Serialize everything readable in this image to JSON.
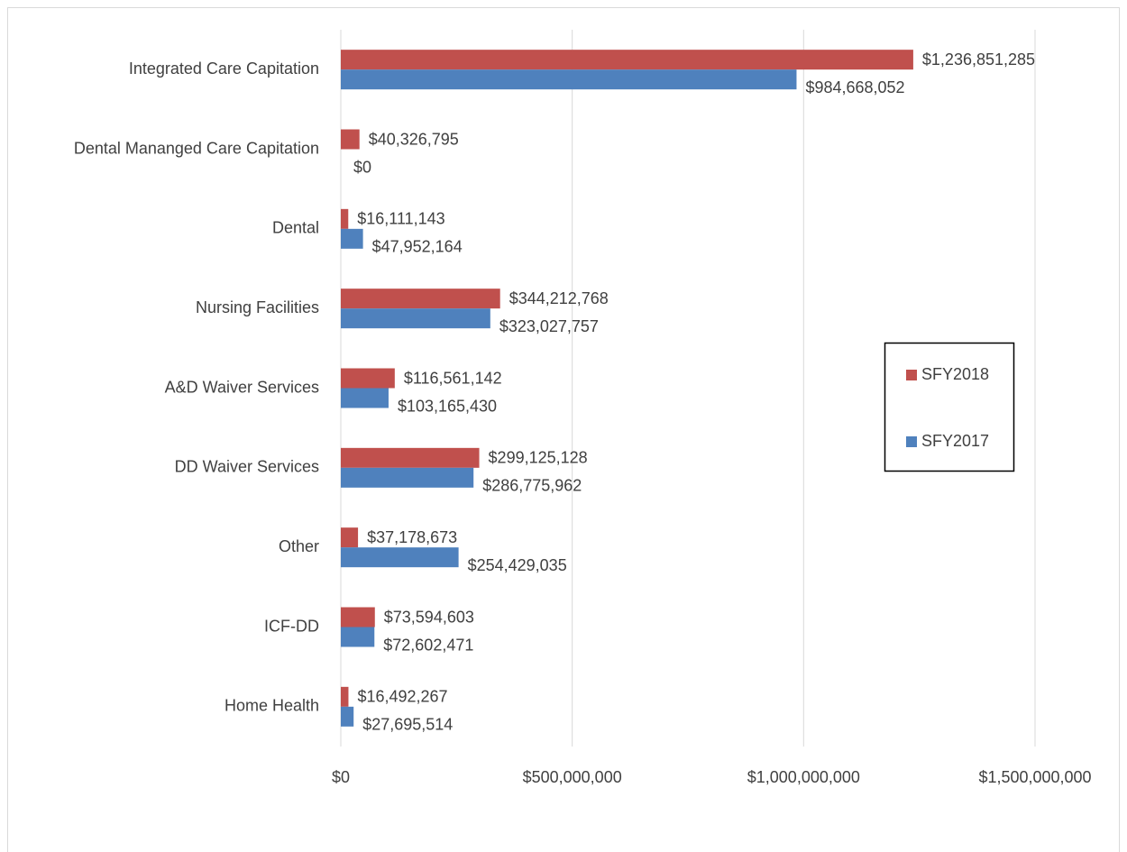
{
  "chart_data": {
    "type": "hbar",
    "categories": [
      "Integrated Care Capitation",
      "Dental Mananged Care Capitation",
      "Dental",
      "Nursing Facilities",
      "A&D Waiver Services",
      "DD Waiver Services",
      "Other",
      "ICF-DD",
      "Home Health"
    ],
    "series": [
      {
        "name": "SFY2018",
        "color": "#c0504d",
        "values": [
          1236851285,
          40326795,
          16111143,
          344212768,
          116561142,
          299125128,
          37178673,
          73594603,
          16492267
        ],
        "value_labels": [
          "$1,236,851,285",
          "$40,326,795",
          "$16,111,143",
          "$344,212,768",
          "$116,561,142",
          "$299,125,128",
          "$37,178,673",
          "$73,594,603",
          "$16,492,267"
        ]
      },
      {
        "name": "SFY2017",
        "color": "#4f81bd",
        "values": [
          984668052,
          0,
          47952164,
          323027757,
          103165430,
          286775962,
          254429035,
          72602471,
          27695514
        ],
        "value_labels": [
          "$984,668,052",
          "$0",
          "$47,952,164",
          "$323,027,757",
          "$103,165,430",
          "$286,775,962",
          "$254,429,035",
          "$72,602,471",
          "$27,695,514"
        ]
      }
    ],
    "xlim": [
      0,
      1500000000
    ],
    "xticks": [
      {
        "value": 0,
        "label": "$0"
      },
      {
        "value": 500000000,
        "label": "$500,000,000"
      },
      {
        "value": 1000000000,
        "label": "$1,000,000,000"
      },
      {
        "value": 1500000000,
        "label": "$1,500,000,000"
      }
    ],
    "grid": true,
    "legend": "right"
  }
}
